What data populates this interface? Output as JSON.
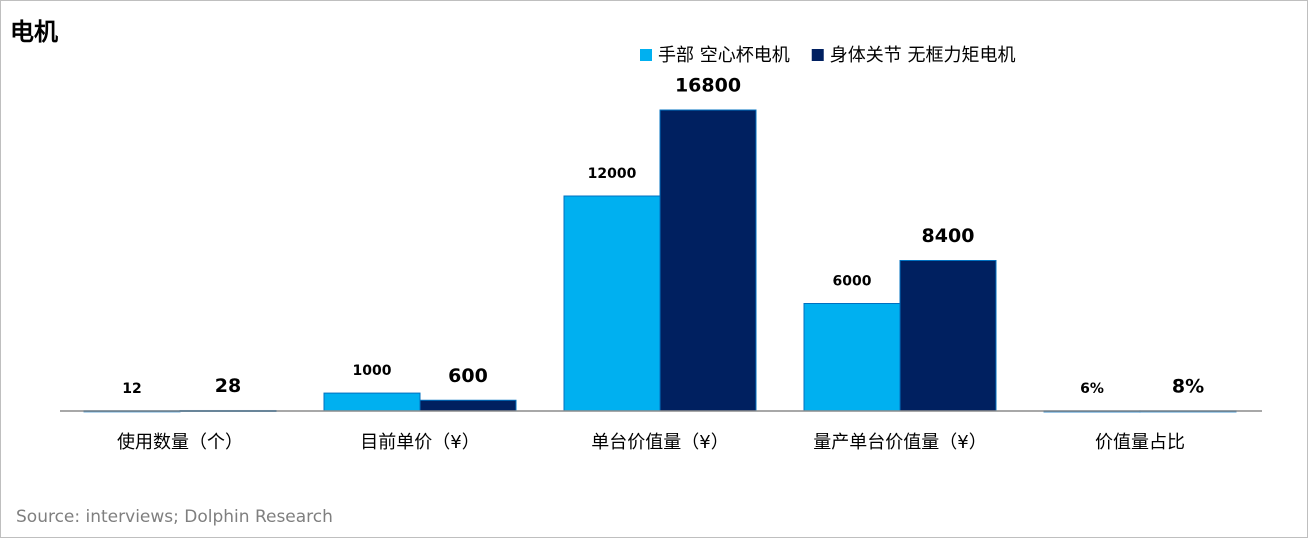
{
  "chart_data": {
    "type": "bar",
    "title": "电机",
    "categories": [
      "使用数量（个）",
      "目前单价（¥）",
      "单台价值量（¥）",
      "量产单台价值量（¥）",
      "价值量占比"
    ],
    "series": [
      {
        "name": "手部 空心杯电机",
        "color": "#00b0f0",
        "values": [
          12,
          1000,
          12000,
          6000,
          6
        ],
        "value_labels": [
          "12",
          "1000",
          "12000",
          "6000",
          "6%"
        ]
      },
      {
        "name": "身体关节 无框力矩电机",
        "color": "#002060",
        "values": [
          28,
          600,
          16800,
          8400,
          8
        ],
        "value_labels": [
          "28",
          "600",
          "16800",
          "8400",
          "8%"
        ]
      }
    ],
    "ylim": [
      0,
      18000
    ],
    "source": "Source: interviews; Dolphin Research"
  }
}
